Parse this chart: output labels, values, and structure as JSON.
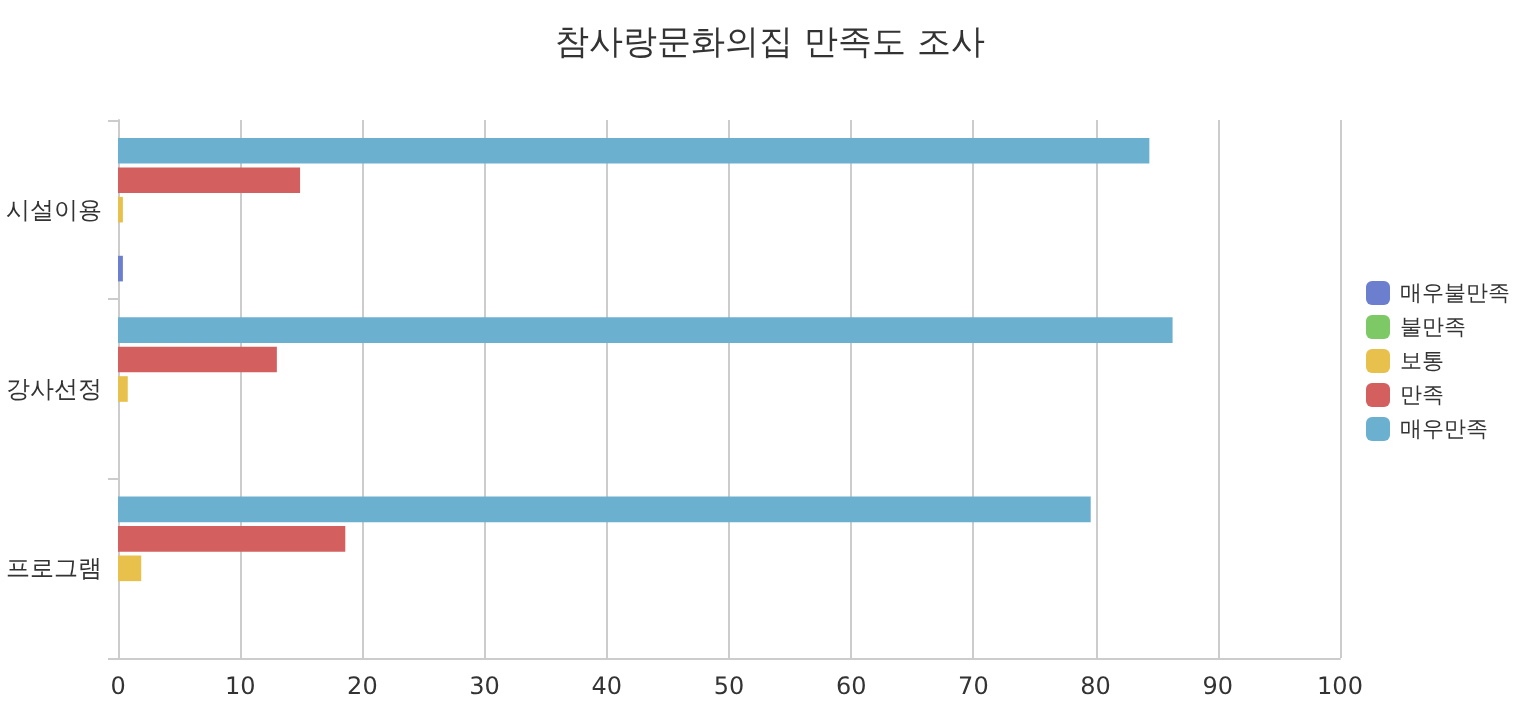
{
  "chart_data": {
    "type": "bar",
    "orientation": "horizontal",
    "title": "참사랑문화의집 만족도 조사",
    "categories": [
      "시설이용",
      "강사선정",
      "프로그램"
    ],
    "series": [
      {
        "name": "매우불만족",
        "color": "#6b7fce",
        "values": [
          0.4,
          0,
          0
        ]
      },
      {
        "name": "불만족",
        "color": "#7cc965",
        "values": [
          0,
          0,
          0
        ]
      },
      {
        "name": "보통",
        "color": "#e8c14c",
        "values": [
          0.4,
          0.8,
          1.9
        ]
      },
      {
        "name": "만족",
        "color": "#d45f5f",
        "values": [
          14.9,
          13,
          18.6
        ]
      },
      {
        "name": "매우만족",
        "color": "#6cb0d0",
        "values": [
          84.4,
          86.3,
          79.6
        ]
      }
    ],
    "xlim": [
      0,
      100
    ],
    "xticks": [
      0,
      10,
      20,
      30,
      40,
      50,
      60,
      70,
      80,
      90,
      100
    ],
    "grid": "x",
    "legend": "right"
  }
}
